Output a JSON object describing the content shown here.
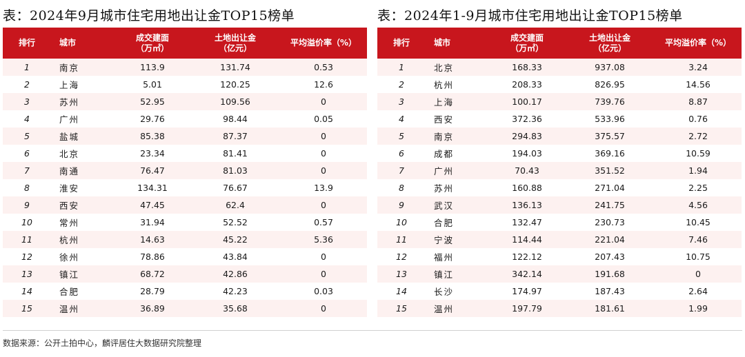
{
  "left_table": {
    "title": "表：2024年9月城市住宅用地出让金TOP15榜单",
    "headers": {
      "rank": "排行",
      "city": "城市",
      "area_l1": "成交建面",
      "area_l2": "（万㎡）",
      "fee_l1": "土地出让金",
      "fee_l2": "（亿元）",
      "premium": "平均溢价率（%）"
    },
    "rows": [
      {
        "rank": "1",
        "city": "南京",
        "area": "113.9",
        "fee": "131.74",
        "premium": "0.53"
      },
      {
        "rank": "2",
        "city": "上海",
        "area": "5.01",
        "fee": "120.25",
        "premium": "12.6"
      },
      {
        "rank": "3",
        "city": "苏州",
        "area": "52.95",
        "fee": "109.56",
        "premium": "0"
      },
      {
        "rank": "4",
        "city": "广州",
        "area": "29.76",
        "fee": "98.44",
        "premium": "0.05"
      },
      {
        "rank": "5",
        "city": "盐城",
        "area": "85.38",
        "fee": "87.37",
        "premium": "0"
      },
      {
        "rank": "6",
        "city": "北京",
        "area": "23.34",
        "fee": "81.41",
        "premium": "0"
      },
      {
        "rank": "7",
        "city": "南通",
        "area": "76.47",
        "fee": "81.03",
        "premium": "0"
      },
      {
        "rank": "8",
        "city": "淮安",
        "area": "134.31",
        "fee": "76.67",
        "premium": "13.9"
      },
      {
        "rank": "9",
        "city": "西安",
        "area": "47.45",
        "fee": "62.4",
        "premium": "0"
      },
      {
        "rank": "10",
        "city": "常州",
        "area": "31.94",
        "fee": "52.52",
        "premium": "0.57"
      },
      {
        "rank": "11",
        "city": "杭州",
        "area": "14.63",
        "fee": "45.22",
        "premium": "5.36"
      },
      {
        "rank": "12",
        "city": "徐州",
        "area": "78.86",
        "fee": "43.84",
        "premium": "0"
      },
      {
        "rank": "13",
        "city": "镇江",
        "area": "68.72",
        "fee": "42.86",
        "premium": "0"
      },
      {
        "rank": "14",
        "city": "合肥",
        "area": "28.79",
        "fee": "42.23",
        "premium": "0.03"
      },
      {
        "rank": "15",
        "city": "温州",
        "area": "36.89",
        "fee": "35.68",
        "premium": "0"
      }
    ]
  },
  "right_table": {
    "title": "表：2024年1-9月城市住宅用地出让金TOP15榜单",
    "headers": {
      "rank": "排行",
      "city": "城市",
      "area_l1": "成交建面",
      "area_l2": "（万㎡）",
      "fee_l1": "土地出让金",
      "fee_l2": "（亿元）",
      "premium": "平均溢价率（%）"
    },
    "rows": [
      {
        "rank": "1",
        "city": "北京",
        "area": "168.33",
        "fee": "937.08",
        "premium": "3.24"
      },
      {
        "rank": "2",
        "city": "杭州",
        "area": "208.33",
        "fee": "826.95",
        "premium": "14.56"
      },
      {
        "rank": "3",
        "city": "上海",
        "area": "100.17",
        "fee": "739.76",
        "premium": "8.87"
      },
      {
        "rank": "4",
        "city": "西安",
        "area": "372.36",
        "fee": "533.96",
        "premium": "0.76"
      },
      {
        "rank": "5",
        "city": "南京",
        "area": "294.83",
        "fee": "375.57",
        "premium": "2.72"
      },
      {
        "rank": "6",
        "city": "成都",
        "area": "194.03",
        "fee": "369.16",
        "premium": "10.59"
      },
      {
        "rank": "7",
        "city": "广州",
        "area": "70.43",
        "fee": "351.52",
        "premium": "1.94"
      },
      {
        "rank": "8",
        "city": "苏州",
        "area": "160.88",
        "fee": "271.04",
        "premium": "2.25"
      },
      {
        "rank": "9",
        "city": "武汉",
        "area": "136.13",
        "fee": "241.75",
        "premium": "4.56"
      },
      {
        "rank": "10",
        "city": "合肥",
        "area": "132.47",
        "fee": "230.73",
        "premium": "10.45"
      },
      {
        "rank": "11",
        "city": "宁波",
        "area": "114.44",
        "fee": "221.04",
        "premium": "7.46"
      },
      {
        "rank": "12",
        "city": "福州",
        "area": "122.12",
        "fee": "207.43",
        "premium": "10.75"
      },
      {
        "rank": "13",
        "city": "镇江",
        "area": "342.14",
        "fee": "191.68",
        "premium": "0"
      },
      {
        "rank": "14",
        "city": "长沙",
        "area": "174.97",
        "fee": "187.43",
        "premium": "2.64"
      },
      {
        "rank": "15",
        "city": "温州",
        "area": "197.79",
        "fee": "181.61",
        "premium": "1.99"
      }
    ]
  },
  "source": "数据来源：公开土拍中心，麟评居住大数据研究院整理",
  "colors": {
    "header_bg": "#c8161d",
    "stripe_bg": "#fdf1f0"
  }
}
